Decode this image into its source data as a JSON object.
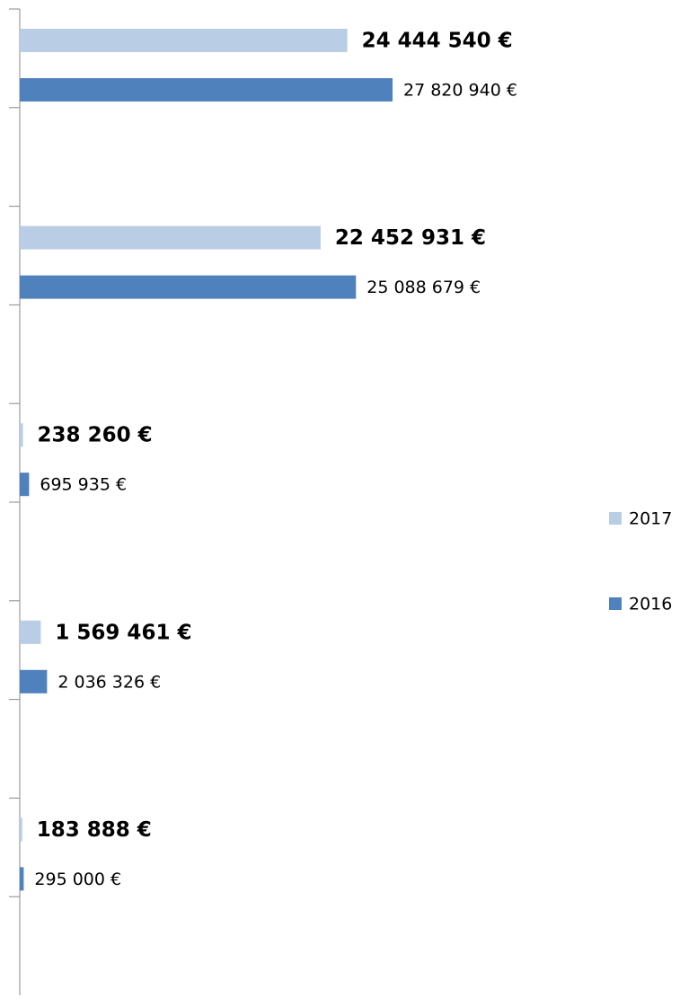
{
  "chart_data": {
    "type": "bar",
    "orientation": "horizontal",
    "categories": [
      null,
      null,
      null,
      null,
      null
    ],
    "series": [
      {
        "name": "2017",
        "color": "#b9cde5",
        "values": [
          24444540,
          22452931,
          238260,
          1569461,
          183888
        ],
        "value_labels": [
          "24 444 540 €",
          "22 452 931 €",
          "238 260 €",
          "1 569 461 €",
          "183 888 €"
        ]
      },
      {
        "name": "2016",
        "color": "#4f81bd",
        "values": [
          27820940,
          25088679,
          695935,
          2036326,
          295000
        ],
        "value_labels": [
          "27 820 940 €",
          "25 088 679 €",
          "695 935 €",
          "2 036 326 €",
          "295 000 €"
        ]
      }
    ],
    "legend": "right"
  }
}
